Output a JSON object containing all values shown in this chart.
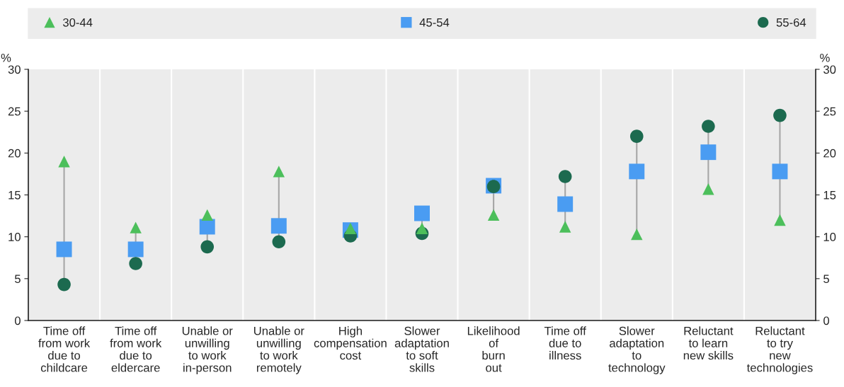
{
  "chart_data": {
    "type": "scatter",
    "categories": [
      "Time off\nfrom work\ndue to\nchildcare",
      "Time off\nfrom work\ndue to\neldercare",
      "Unable or\nunwilling\nto work\nin-person",
      "Unable or\nunwilling\nto work\nremotely",
      "High\ncompensation\ncost",
      "Slower\nadaptation\nto soft\nskills",
      "Likelihood\nof\nburn\nout",
      "Time off\ndue to\nillness",
      "Slower\nadaptation\nto\ntechnology",
      "Reluctant\nto learn\nnew skills",
      "Reluctant\nto try\nnew\ntechnologies"
    ],
    "series": [
      {
        "name": "30-44",
        "color": "#4cbf5b",
        "marker": "triangle",
        "values": [
          19.0,
          11.1,
          12.6,
          17.8,
          11.0,
          11.0,
          12.6,
          11.2,
          10.3,
          15.7,
          12.0
        ]
      },
      {
        "name": "45-54",
        "color": "#4a9cf2",
        "marker": "square",
        "values": [
          8.5,
          8.5,
          11.2,
          11.3,
          10.8,
          12.8,
          16.1,
          13.9,
          17.8,
          20.1,
          17.8
        ]
      },
      {
        "name": "55-64",
        "color": "#1c6a4f",
        "marker": "circle",
        "values": [
          4.3,
          6.8,
          8.8,
          9.4,
          10.1,
          10.4,
          16.0,
          17.2,
          22.0,
          23.2,
          24.5
        ]
      }
    ],
    "ylabel": "%",
    "y2label": "%",
    "ylim": [
      0,
      30
    ],
    "yticks": [
      0,
      5,
      10,
      15,
      20,
      25,
      30
    ],
    "y2lim": [
      0,
      30
    ],
    "y2ticks": [
      0,
      5,
      10,
      15,
      20,
      25,
      30
    ],
    "grid": "x",
    "legend": "top"
  }
}
